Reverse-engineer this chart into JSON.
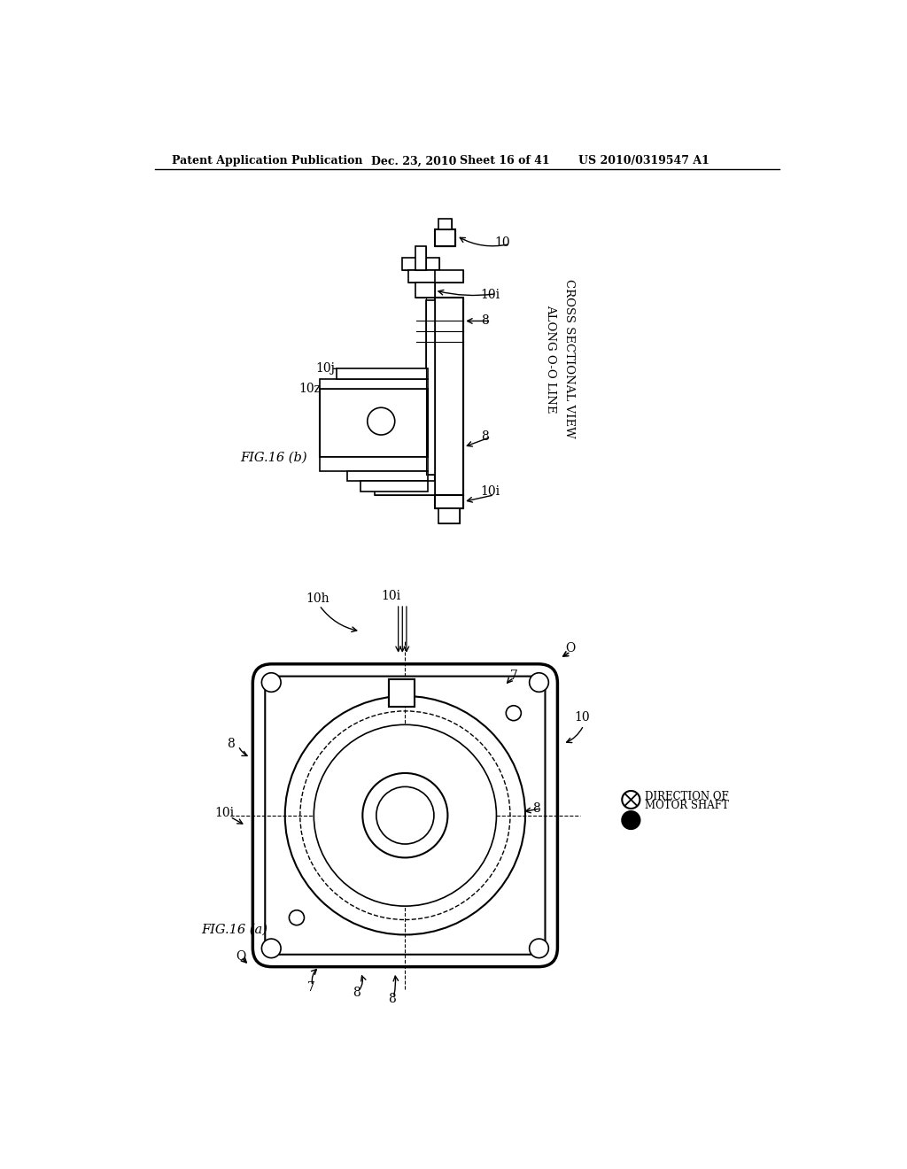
{
  "background_color": "#ffffff",
  "header_text": "Patent Application Publication",
  "header_date": "Dec. 23, 2010",
  "header_sheet": "Sheet 16 of 41",
  "header_patent": "US 2010/0319547 A1",
  "fig_a_label": "FIG.16 (a)",
  "fig_b_label": "FIG.16 (b)",
  "cross_section_label": "CROSS SECTIONAL VIEW\nALONG O-O LINE",
  "direction_label": "DIRECTION OF\nMOTOR SHAFT"
}
